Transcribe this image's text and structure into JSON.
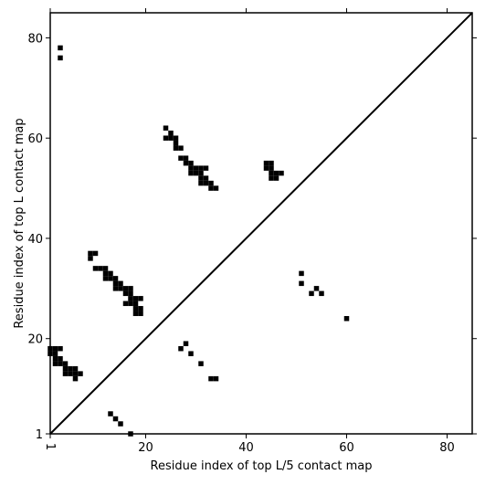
{
  "chart_data": {
    "type": "heatmap",
    "title": "",
    "xlabel": "Residue index of top L/5 contact map",
    "ylabel": "Residue index of top L contact map",
    "xlim": [
      1,
      85
    ],
    "ylim": [
      1,
      85
    ],
    "xticks": [
      1,
      20,
      40,
      60,
      80
    ],
    "yticks": [
      1,
      20,
      40,
      60,
      80
    ],
    "xtick_labels": [
      "1",
      "20",
      "40",
      "60",
      "80"
    ],
    "ytick_labels": [
      "1",
      "20",
      "40",
      "60",
      "80"
    ],
    "grid": false,
    "diagonal": true,
    "cell_color": "#000000",
    "upper_contacts": [
      [
        3,
        78
      ],
      [
        3,
        76
      ],
      [
        24,
        62
      ],
      [
        25,
        61
      ],
      [
        24,
        60
      ],
      [
        25,
        60
      ],
      [
        26,
        60
      ],
      [
        26,
        59
      ],
      [
        26,
        58
      ],
      [
        27,
        58
      ],
      [
        27,
        56
      ],
      [
        28,
        56
      ],
      [
        28,
        55
      ],
      [
        29,
        55
      ],
      [
        29,
        54
      ],
      [
        30,
        54
      ],
      [
        31,
        54
      ],
      [
        32,
        54
      ],
      [
        29,
        53
      ],
      [
        30,
        53
      ],
      [
        31,
        53
      ],
      [
        31,
        52
      ],
      [
        32,
        52
      ],
      [
        31,
        51
      ],
      [
        32,
        51
      ],
      [
        33,
        51
      ],
      [
        33,
        50
      ],
      [
        34,
        50
      ],
      [
        44,
        55
      ],
      [
        45,
        55
      ],
      [
        44,
        54
      ],
      [
        45,
        54
      ],
      [
        45,
        53
      ],
      [
        46,
        53
      ],
      [
        47,
        53
      ],
      [
        45,
        52
      ],
      [
        46,
        52
      ],
      [
        9,
        37
      ],
      [
        10,
        37
      ],
      [
        9,
        36
      ],
      [
        10,
        34
      ],
      [
        11,
        34
      ],
      [
        12,
        34
      ],
      [
        12,
        33
      ],
      [
        13,
        33
      ],
      [
        12,
        32
      ],
      [
        13,
        32
      ],
      [
        14,
        32
      ],
      [
        14,
        31
      ],
      [
        15,
        31
      ],
      [
        14,
        30
      ],
      [
        15,
        30
      ],
      [
        16,
        30
      ],
      [
        17,
        30
      ],
      [
        16,
        29
      ],
      [
        17,
        29
      ],
      [
        17,
        28
      ],
      [
        18,
        28
      ],
      [
        19,
        28
      ],
      [
        18,
        27
      ],
      [
        16,
        27
      ],
      [
        17,
        27
      ],
      [
        18,
        26
      ],
      [
        19,
        26
      ],
      [
        18,
        25
      ],
      [
        19,
        25
      ]
    ],
    "lower_contacts": [
      [
        1,
        18
      ],
      [
        2,
        18
      ],
      [
        3,
        18
      ],
      [
        1,
        17
      ],
      [
        2,
        17
      ],
      [
        2,
        16
      ],
      [
        3,
        16
      ],
      [
        2,
        15
      ],
      [
        3,
        15
      ],
      [
        4,
        15
      ],
      [
        4,
        14
      ],
      [
        5,
        14
      ],
      [
        6,
        14
      ],
      [
        4,
        13
      ],
      [
        5,
        13
      ],
      [
        6,
        13
      ],
      [
        7,
        13
      ],
      [
        6,
        12
      ],
      [
        13,
        5
      ],
      [
        14,
        4
      ],
      [
        15,
        3
      ],
      [
        17,
        1
      ],
      [
        27,
        18
      ],
      [
        28,
        19
      ],
      [
        29,
        17
      ],
      [
        31,
        15
      ],
      [
        33,
        12
      ],
      [
        34,
        12
      ],
      [
        51,
        33
      ],
      [
        51,
        31
      ],
      [
        53,
        29
      ],
      [
        54,
        30
      ],
      [
        55,
        29
      ],
      [
        60,
        24
      ]
    ]
  }
}
